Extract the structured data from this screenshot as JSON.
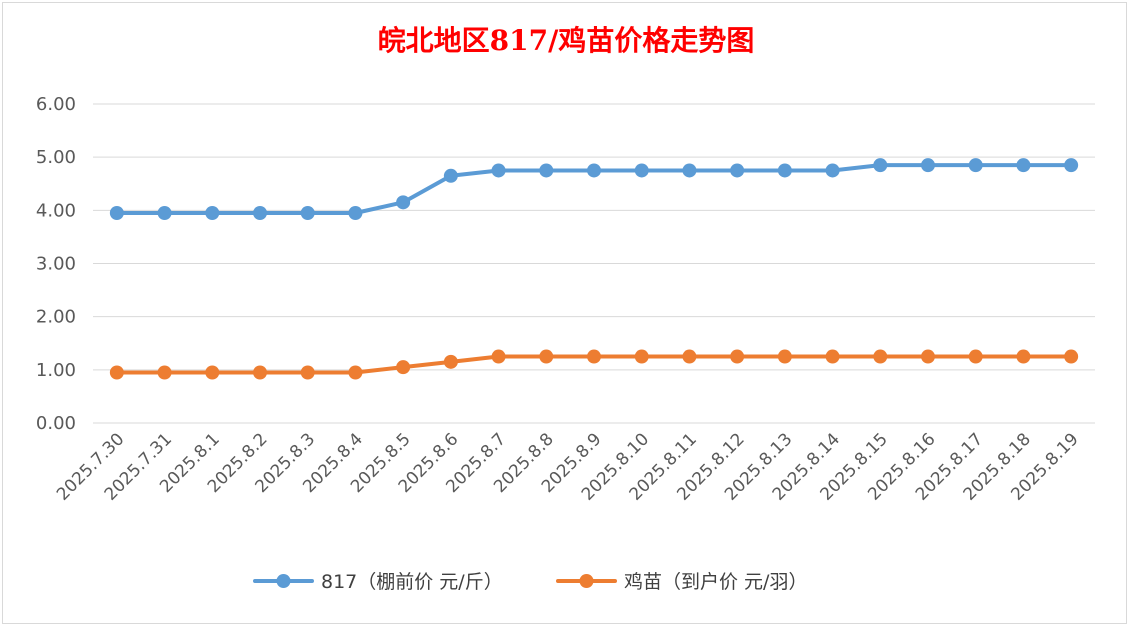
{
  "chart_data": {
    "type": "line",
    "title": "皖北地区817/鸡苗价格走势图",
    "title_color": "#ff0000",
    "categories": [
      "2025.7.30",
      "2025.7.31",
      "2025.8.1",
      "2025.8.2",
      "2025.8.3",
      "2025.8.4",
      "2025.8.5",
      "2025.8.6",
      "2025.8.7",
      "2025.8.8",
      "2025.8.9",
      "2025.8.10",
      "2025.8.11",
      "2025.8.12",
      "2025.8.13",
      "2025.8.14",
      "2025.8.15",
      "2025.8.16",
      "2025.8.17",
      "2025.8.18",
      "2025.8.19"
    ],
    "series": [
      {
        "name": "817（棚前价 元/斤）",
        "color": "#5b9bd5",
        "values": [
          3.95,
          3.95,
          3.95,
          3.95,
          3.95,
          3.95,
          4.15,
          4.65,
          4.75,
          4.75,
          4.75,
          4.75,
          4.75,
          4.75,
          4.75,
          4.75,
          4.85,
          4.85,
          4.85,
          4.85,
          4.85
        ]
      },
      {
        "name": "鸡苗（到户价 元/羽）",
        "color": "#ed7d31",
        "values": [
          0.95,
          0.95,
          0.95,
          0.95,
          0.95,
          0.95,
          1.05,
          1.15,
          1.25,
          1.25,
          1.25,
          1.25,
          1.25,
          1.25,
          1.25,
          1.25,
          1.25,
          1.25,
          1.25,
          1.25,
          1.25
        ]
      }
    ],
    "yticks": [
      "0.00",
      "1.00",
      "2.00",
      "3.00",
      "4.00",
      "5.00",
      "6.00"
    ],
    "ylim": [
      0,
      6
    ],
    "xlabel": "",
    "ylabel": "",
    "grid": true,
    "legend_position": "bottom"
  }
}
